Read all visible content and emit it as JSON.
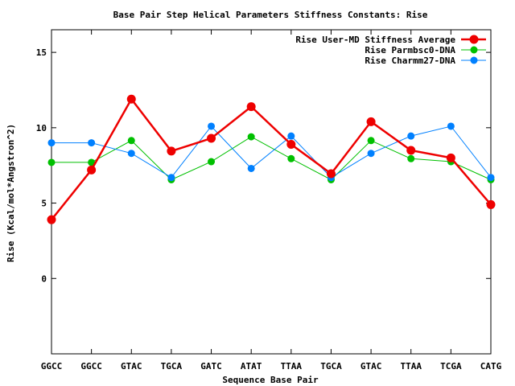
{
  "chart_data": {
    "type": "line",
    "title": "Base Pair Step Helical Parameters Stiffness Constants: Rise",
    "xlabel": "Sequence Base Pair",
    "ylabel": "Rise (Kcal/mol*Angstron^2)",
    "categories": [
      "GGCC",
      "GGCC",
      "GTAC",
      "TGCA",
      "GATC",
      "ATAT",
      "TTAA",
      "TGCA",
      "GTAC",
      "TTAA",
      "TCGA",
      "CATG"
    ],
    "ylim": [
      -5,
      16.5
    ],
    "yticks": [
      0,
      5,
      10,
      15
    ],
    "legend_position": "top-right",
    "grid": false,
    "series": [
      {
        "name": "Rise User-MD Stiffness Average",
        "color": "#ee0000",
        "line_width": 2.5,
        "marker_size": 5.5,
        "values": [
          3.9,
          7.2,
          11.9,
          8.45,
          9.3,
          11.4,
          8.9,
          6.95,
          10.4,
          8.5,
          8.0,
          4.9
        ]
      },
      {
        "name": "Rise Parmbsc0-DNA",
        "color": "#00c000",
        "line_width": 1,
        "marker_size": 4.5,
        "values": [
          7.7,
          7.7,
          9.15,
          6.55,
          7.75,
          9.4,
          7.95,
          6.55,
          9.15,
          7.95,
          7.75,
          6.55
        ]
      },
      {
        "name": "Rise Charmm27-DNA",
        "color": "#0080ff",
        "line_width": 1,
        "marker_size": 4.5,
        "values": [
          9.0,
          9.0,
          8.3,
          6.7,
          10.1,
          7.3,
          9.45,
          6.7,
          8.3,
          9.45,
          10.1,
          6.7
        ]
      }
    ]
  }
}
